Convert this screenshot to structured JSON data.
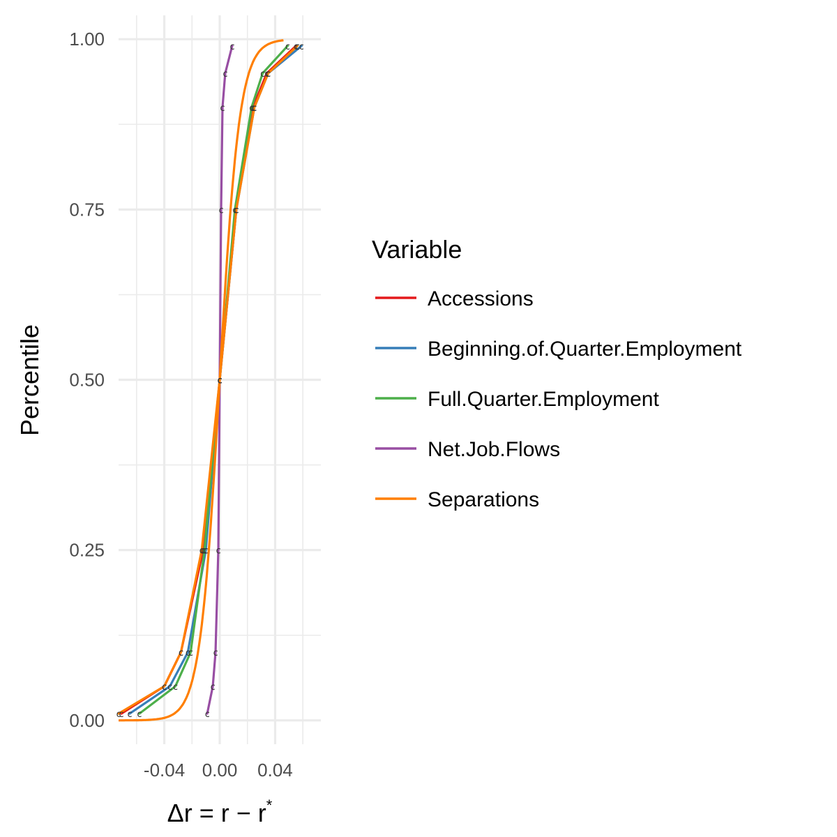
{
  "chart_data": {
    "type": "line",
    "title": "",
    "xlabel": "Δr = r − r*",
    "xlabel_parts": {
      "main": "Δr = r − r",
      "sup": "*"
    },
    "ylabel": "Percentile",
    "xlim": [
      -0.073,
      0.073
    ],
    "ylim": [
      -0.035,
      1.035
    ],
    "x_ticks": [
      -0.04,
      0.0,
      0.04
    ],
    "x_tick_labels": [
      "-0.04",
      "0.00",
      "0.04"
    ],
    "y_ticks": [
      0.0,
      0.25,
      0.5,
      0.75,
      1.0
    ],
    "y_tick_labels": [
      "0.00",
      "0.25",
      "0.50",
      "0.75",
      "1.00"
    ],
    "grid": true,
    "legend_title": "Variable",
    "legend_position": "right",
    "point_label": "c",
    "percentiles": [
      0.01,
      0.05,
      0.1,
      0.25,
      0.5,
      0.75,
      0.9,
      0.95,
      0.99
    ],
    "series": [
      {
        "name": "Accessions",
        "color": "#E41A1C",
        "x": [
          -0.071,
          -0.04,
          -0.028,
          -0.012,
          0.0,
          0.012,
          0.024,
          0.034,
          0.055
        ],
        "y": [
          0.01,
          0.05,
          0.1,
          0.25,
          0.5,
          0.75,
          0.9,
          0.95,
          0.99
        ]
      },
      {
        "name": "Beginning.of.Quarter.Employment",
        "color": "#377EB8",
        "x": [
          -0.065,
          -0.036,
          -0.023,
          -0.01,
          0.0,
          0.012,
          0.025,
          0.035,
          0.059
        ],
        "y": [
          0.01,
          0.05,
          0.1,
          0.25,
          0.5,
          0.75,
          0.9,
          0.95,
          0.99
        ]
      },
      {
        "name": "Full.Quarter.Employment",
        "color": "#4DAF4A",
        "x": [
          -0.058,
          -0.032,
          -0.021,
          -0.011,
          0.0,
          0.011,
          0.023,
          0.031,
          0.049
        ],
        "y": [
          0.01,
          0.05,
          0.1,
          0.25,
          0.5,
          0.75,
          0.9,
          0.95,
          0.99
        ]
      },
      {
        "name": "Net.Job.Flows",
        "color": "#984EA3",
        "x": [
          -0.009,
          -0.005,
          -0.003,
          -0.001,
          0.0,
          0.001,
          0.002,
          0.004,
          0.009
        ],
        "y": [
          0.01,
          0.05,
          0.1,
          0.25,
          0.5,
          0.75,
          0.9,
          0.95,
          0.99
        ]
      },
      {
        "name": "Separations",
        "color": "#FF7F00",
        "x": [
          -0.073,
          -0.04,
          -0.028,
          -0.013,
          0.0,
          0.012,
          0.025,
          0.035,
          0.056
        ],
        "y": [
          0.01,
          0.05,
          0.1,
          0.25,
          0.5,
          0.75,
          0.9,
          0.95,
          0.99
        ]
      }
    ],
    "fitted_curve": {
      "color": "#FF7F00",
      "description_in_chart": "smooth sigmoid overlay in orange",
      "x_min": -0.073,
      "x_max": 0.046
    }
  }
}
